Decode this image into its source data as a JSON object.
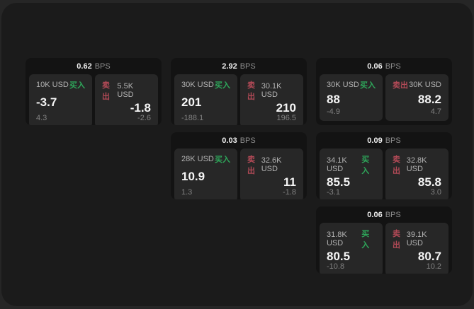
{
  "app": {
    "description": "dark trading quote tiles dashboard",
    "colors": {
      "outer_background": "#262626",
      "surface": "#1b1b1b",
      "card_background": "#131313",
      "panel_background": "#272727",
      "buy_accent": "#2ea65a",
      "sell_accent": "#b34a57"
    }
  },
  "cards": [
    {
      "bps_value": "0.62",
      "bps_unit": "BPS",
      "buy": {
        "size": "10K USD",
        "side_label": "买入",
        "price": "-3.7",
        "delta": "4.3"
      },
      "sell": {
        "side_label": "卖出",
        "size": "5.5K USD",
        "price": "-1.8",
        "delta": "-2.6"
      }
    },
    {
      "bps_value": "2.92",
      "bps_unit": "BPS",
      "buy": {
        "size": "30K USD",
        "side_label": "买入",
        "price": "201",
        "delta": "-188.1"
      },
      "sell": {
        "side_label": "卖出",
        "size": "30.1K USD",
        "price": "210",
        "delta": "196.5"
      }
    },
    {
      "bps_value": "0.06",
      "bps_unit": "BPS",
      "buy": {
        "size": "30K USD",
        "side_label": "买入",
        "price": "88",
        "delta": "-4.9"
      },
      "sell": {
        "side_label": "卖出",
        "size": "30K USD",
        "price": "88.2",
        "delta": "4.7"
      }
    },
    {
      "bps_value": "0.03",
      "bps_unit": "BPS",
      "buy": {
        "size": "28K USD",
        "side_label": "买入",
        "price": "10.9",
        "delta": "1.3"
      },
      "sell": {
        "side_label": "卖出",
        "size": "32.6K USD",
        "price": "11",
        "delta": "-1.8"
      }
    },
    {
      "bps_value": "0.09",
      "bps_unit": "BPS",
      "buy": {
        "size": "34.1K USD",
        "side_label": "买入",
        "price": "85.5",
        "delta": "-3.1"
      },
      "sell": {
        "side_label": "卖出",
        "size": "32.8K USD",
        "price": "85.8",
        "delta": "3.0"
      }
    },
    {
      "bps_value": "0.06",
      "bps_unit": "BPS",
      "buy": {
        "size": "31.8K USD",
        "side_label": "买入",
        "price": "80.5",
        "delta": "-10.8"
      },
      "sell": {
        "side_label": "卖出",
        "size": "39.1K USD",
        "price": "80.7",
        "delta": "10.2"
      }
    }
  ]
}
